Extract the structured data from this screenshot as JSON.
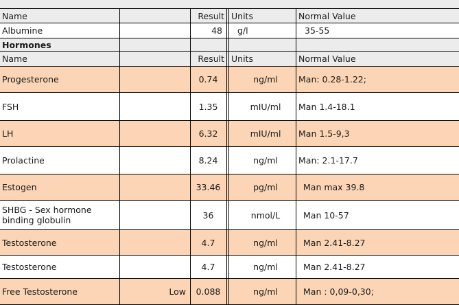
{
  "header": {
    "name": "Name",
    "result": "Result",
    "units": "Units",
    "normal": "Normal Value"
  },
  "albumine": {
    "name": "Albumine",
    "flag": "",
    "result": "48",
    "units": "g/l",
    "normal": "35-55"
  },
  "section": {
    "title": "Hormones"
  },
  "header2": {
    "name": "Name",
    "result": "Result",
    "units": "Units",
    "normal": "Normal Value"
  },
  "rows": [
    {
      "name": "Progesterone",
      "flag": "",
      "result": "0.74",
      "units": "ng/ml",
      "normal": "Man: 0.28-1.22;",
      "shade": "peach"
    },
    {
      "name": "FSH",
      "flag": "",
      "result": "1.35",
      "units": "mIU/ml",
      "normal": "Man 1.4-18.1",
      "shade": "white"
    },
    {
      "name": "LH",
      "flag": "",
      "result": "6.32",
      "units": "mIU/ml",
      "normal": "Man 1.5-9,3",
      "shade": "peach"
    },
    {
      "name": "Prolactine",
      "flag": "",
      "result": "8.24",
      "units": "ng/ml",
      "normal": "Man: 2.1-17.7",
      "shade": "white"
    },
    {
      "name": "Estogen",
      "flag": "",
      "result": "33.46",
      "units": "pg/ml",
      "normal": "Man max 39.8",
      "shade": "peach"
    },
    {
      "name": "SHBG - Sex hormone binding globulin",
      "flag": "",
      "result": "36",
      "units": "nmol/L",
      "normal": "Man  10-57",
      "shade": "white"
    },
    {
      "name": "Testosterone",
      "flag": "",
      "result": "4.7",
      "units": "ng/ml",
      "normal": "Man 2.41-8.27",
      "shade": "peach"
    },
    {
      "name": "Testosterone",
      "flag": "",
      "result": "4.7",
      "units": "ng/ml",
      "normal": "Man 2.41-8.27",
      "shade": "white"
    },
    {
      "name": "Free Testosterone",
      "flag": "Low",
      "result": "0.088",
      "units": "ng/ml",
      "normal": "Man : 0,09-0,30;",
      "shade": "peach"
    }
  ]
}
